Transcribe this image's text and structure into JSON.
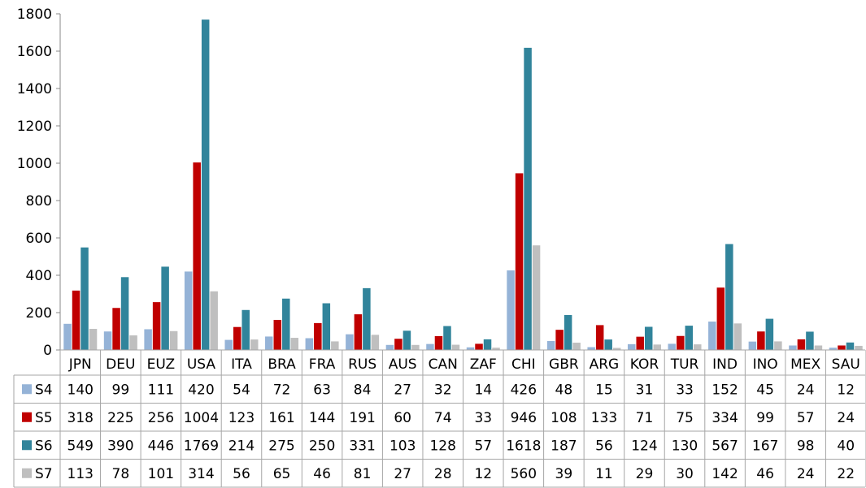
{
  "chart_data": {
    "type": "bar",
    "title": "",
    "xlabel": "",
    "ylabel": "",
    "ylim": [
      0,
      1800
    ],
    "yticks": [
      0,
      200,
      400,
      600,
      800,
      1000,
      1200,
      1400,
      1600,
      1800
    ],
    "grid": false,
    "legend": "data-table-left",
    "categories": [
      "JPN",
      "DEU",
      "EUZ",
      "USA",
      "ITA",
      "BRA",
      "FRA",
      "RUS",
      "AUS",
      "CAN",
      "ZAF",
      "CHI",
      "GBR",
      "ARG",
      "KOR",
      "TUR",
      "IND",
      "INO",
      "MEX",
      "SAU"
    ],
    "series": [
      {
        "name": "S4",
        "color": "#95b3d7",
        "values": [
          140,
          99,
          111,
          420,
          54,
          72,
          63,
          84,
          27,
          32,
          14,
          426,
          48,
          15,
          31,
          33,
          152,
          45,
          24,
          12
        ]
      },
      {
        "name": "S5",
        "color": "#c00000",
        "values": [
          318,
          225,
          256,
          1004,
          123,
          161,
          144,
          191,
          60,
          74,
          33,
          946,
          108,
          133,
          71,
          75,
          334,
          99,
          57,
          24
        ]
      },
      {
        "name": "S6",
        "color": "#31849b",
        "values": [
          549,
          390,
          446,
          1769,
          214,
          275,
          250,
          331,
          103,
          128,
          57,
          1618,
          187,
          56,
          124,
          130,
          567,
          167,
          98,
          40
        ]
      },
      {
        "name": "S7",
        "color": "#bfbfbf",
        "values": [
          113,
          78,
          101,
          314,
          56,
          65,
          46,
          81,
          27,
          28,
          12,
          560,
          39,
          11,
          29,
          30,
          142,
          46,
          24,
          22
        ]
      }
    ]
  }
}
